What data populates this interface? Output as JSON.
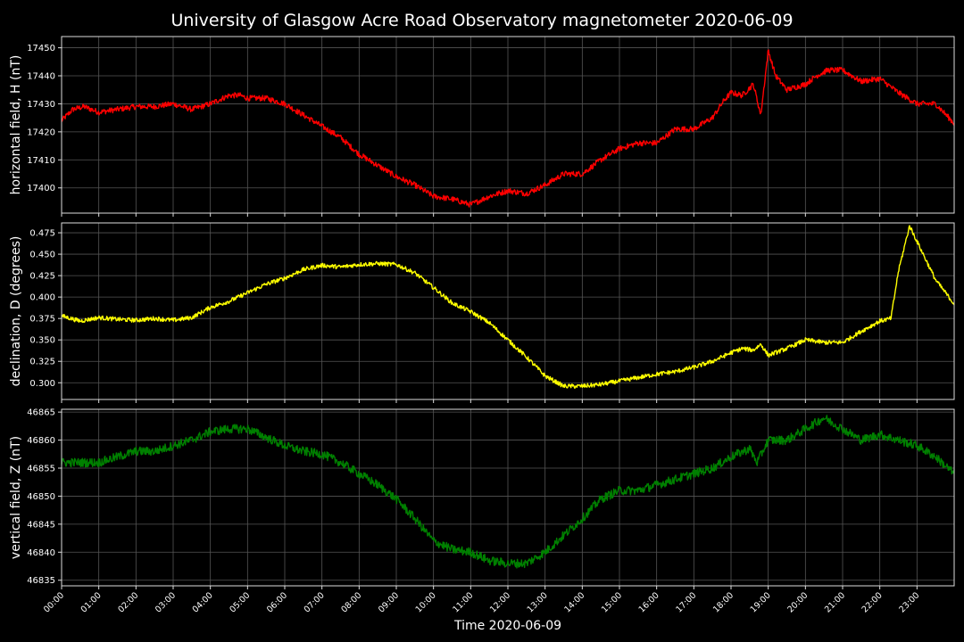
{
  "chart_data": {
    "type": "line",
    "title": "University of Glasgow Acre Road Observatory magnetometer 2020-06-09",
    "xlabel": "Time 2020-06-09",
    "x_ticks": [
      "00:00",
      "01:00",
      "02:00",
      "03:00",
      "04:00",
      "05:00",
      "06:00",
      "07:00",
      "08:00",
      "09:00",
      "10:00",
      "11:00",
      "12:00",
      "13:00",
      "14:00",
      "15:00",
      "16:00",
      "17:00",
      "18:00",
      "19:00",
      "20:00",
      "21:00",
      "22:00",
      "23:00"
    ],
    "xlim_hours": [
      0,
      24
    ],
    "grid": true,
    "panels": [
      {
        "ylabel": "horizontal field, H (nT)",
        "color": "#ff0000",
        "ylim": [
          17391,
          17454
        ],
        "y_ticks": [
          17400,
          17410,
          17420,
          17430,
          17440,
          17450
        ],
        "tick_decimals": 0,
        "noise": 1.0,
        "series": {
          "x": [
            0,
            0.3,
            0.6,
            1,
            1.5,
            2,
            2.5,
            3,
            3.5,
            4,
            4.5,
            4.8,
            5,
            5.5,
            6,
            6.5,
            7,
            7.5,
            8,
            8.5,
            9,
            9.5,
            10,
            10.5,
            11,
            11.5,
            12,
            12.5,
            13,
            13.5,
            14,
            14.5,
            15,
            15.5,
            16,
            16.5,
            17,
            17.5,
            17.8,
            18,
            18.3,
            18.6,
            18.8,
            19,
            19.2,
            19.5,
            20,
            20.3,
            20.6,
            21,
            21.5,
            22,
            22.5,
            23,
            23.5,
            24
          ],
          "y": [
            17424,
            17428,
            17429,
            17427,
            17428,
            17429,
            17429,
            17430,
            17428,
            17430,
            17433,
            17433,
            17432,
            17432,
            17430,
            17426,
            17422,
            17418,
            17412,
            17408,
            17404,
            17401,
            17397,
            17396,
            17394,
            17397,
            17399,
            17398,
            17401,
            17405,
            17405,
            17410,
            17414,
            17416,
            17416,
            17421,
            17421,
            17425,
            17431,
            17434,
            17433,
            17437,
            17426,
            17449,
            17440,
            17435,
            17437,
            17440,
            17442,
            17442,
            17438,
            17439,
            17434,
            17430,
            17430,
            17423
          ]
        }
      },
      {
        "ylabel": "declination, D (degrees)",
        "color": "#ffff00",
        "ylim": [
          0.2805,
          0.4865
        ],
        "y_ticks": [
          0.3,
          0.325,
          0.35,
          0.375,
          0.4,
          0.425,
          0.45,
          0.475
        ],
        "tick_decimals": 3,
        "noise": 0.0025,
        "series": {
          "x": [
            0,
            0.5,
            1,
            1.5,
            2,
            2.5,
            3,
            3.5,
            4,
            4.5,
            5,
            5.5,
            6,
            6.5,
            7,
            7.5,
            8,
            8.5,
            9,
            9.5,
            10,
            10.5,
            11,
            11.5,
            12,
            12.5,
            13,
            13.5,
            14,
            14.5,
            15,
            15.5,
            16,
            16.5,
            17,
            17.5,
            18,
            18.3,
            18.6,
            18.8,
            19,
            19.5,
            20,
            20.5,
            21,
            21.5,
            22,
            22.3,
            22.5,
            22.8,
            23,
            23.5,
            24
          ],
          "y": [
            0.378,
            0.372,
            0.376,
            0.374,
            0.373,
            0.375,
            0.373,
            0.376,
            0.388,
            0.395,
            0.405,
            0.415,
            0.422,
            0.432,
            0.437,
            0.435,
            0.438,
            0.439,
            0.438,
            0.428,
            0.411,
            0.393,
            0.383,
            0.37,
            0.35,
            0.33,
            0.308,
            0.296,
            0.296,
            0.298,
            0.302,
            0.306,
            0.31,
            0.313,
            0.318,
            0.325,
            0.335,
            0.34,
            0.338,
            0.345,
            0.332,
            0.34,
            0.35,
            0.347,
            0.347,
            0.36,
            0.372,
            0.375,
            0.43,
            0.483,
            0.465,
            0.42,
            0.392
          ]
        }
      },
      {
        "ylabel": "vertical field, Z (nT)",
        "color": "#008000",
        "ylim": [
          46834,
          46865.5
        ],
        "y_ticks": [
          46835,
          46840,
          46845,
          46850,
          46855,
          46860,
          46865
        ],
        "tick_decimals": 0,
        "noise": 0.8,
        "series": {
          "x": [
            0,
            0.5,
            1,
            1.5,
            2,
            2.5,
            3,
            3.5,
            4,
            4.5,
            5,
            5.5,
            6,
            6.5,
            7,
            7.5,
            8,
            8.5,
            9,
            9.5,
            10,
            10.5,
            11,
            11.5,
            12,
            12.5,
            13,
            13.5,
            14,
            14.5,
            15,
            15.5,
            16,
            16.5,
            17,
            17.5,
            18,
            18.5,
            18.7,
            19,
            19.5,
            20,
            20.5,
            21,
            21.5,
            22,
            22.5,
            23,
            23.5,
            24
          ],
          "y": [
            46856,
            46856,
            46856,
            46857,
            46858,
            46858,
            46859,
            46860,
            46861.5,
            46862,
            46862,
            46860.5,
            46859,
            46858,
            46857.5,
            46856,
            46854,
            46852,
            46849.5,
            46846,
            46842,
            46840.5,
            46840,
            46838.5,
            46838,
            46838,
            46840,
            46843,
            46846,
            46849.5,
            46851,
            46851,
            46852,
            46853,
            46854,
            46855,
            46857,
            46858.5,
            46856,
            46860,
            46860,
            46862,
            46864,
            46862,
            46860,
            46861,
            46860,
            46859,
            46857,
            46854
          ]
        }
      }
    ]
  }
}
